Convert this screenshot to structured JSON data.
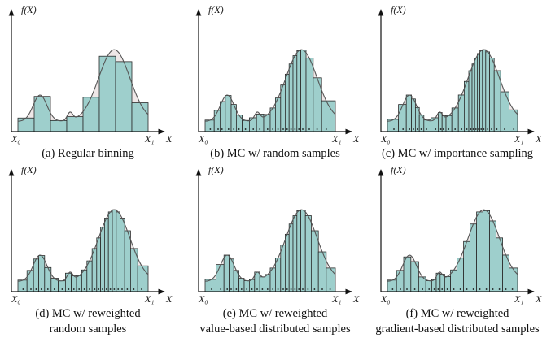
{
  "figure": {
    "curve_color": "#c0a2a2",
    "bar_color": "#9ecfcc",
    "bar_stroke": "#2a2a2a",
    "axis_color": "#111111",
    "panels": [
      {
        "id": "a",
        "y_label": "f(X)",
        "x_label": "X",
        "x_start_label": "X₀",
        "x_end_label": "X₁",
        "caption": [
          "(a) Regular binning"
        ],
        "samples": [
          0.0625,
          0.1875,
          0.3125,
          0.4375,
          0.5625,
          0.6875,
          0.8125,
          0.9375
        ],
        "dots": false,
        "cutoff": 1.0
      },
      {
        "id": "b",
        "y_label": "f(X)",
        "x_label": "X",
        "x_start_label": "X₀",
        "x_end_label": "X₁",
        "caption": [
          "(b) MC w/ random samples"
        ],
        "samples": [
          0.04,
          0.1,
          0.13,
          0.18,
          0.22,
          0.26,
          0.31,
          0.37,
          0.42,
          0.48,
          0.52,
          0.56,
          0.6,
          0.63,
          0.66,
          0.69,
          0.72,
          0.75,
          0.8,
          0.86,
          0.93
        ],
        "dots": true,
        "cutoff": 1.0
      },
      {
        "id": "c",
        "y_label": "f(X)",
        "x_label": "X",
        "x_start_label": "X₀",
        "x_end_label": "X₁",
        "caption": [
          "(c) MC w/ importance sampling"
        ],
        "samples": [
          0.05,
          0.12,
          0.17,
          0.2,
          0.23,
          0.26,
          0.3,
          0.37,
          0.41,
          0.43,
          0.47,
          0.52,
          0.57,
          0.61,
          0.64,
          0.66,
          0.68,
          0.7,
          0.72,
          0.74,
          0.77,
          0.8,
          0.84,
          0.9,
          0.97
        ],
        "dots": true,
        "cutoff": 1.0
      },
      {
        "id": "d",
        "y_label": "f(X)",
        "x_label": "X",
        "x_start_label": "X₀",
        "x_end_label": "X₁",
        "caption": [
          "(d) MC w/ reweighted",
          "random samples"
        ],
        "samples": [
          0.04,
          0.1,
          0.14,
          0.18,
          0.23,
          0.28,
          0.34,
          0.39,
          0.43,
          0.47,
          0.51,
          0.55,
          0.59,
          0.62,
          0.65,
          0.68,
          0.71,
          0.74,
          0.77,
          0.8,
          0.84,
          0.89,
          0.95
        ],
        "dots": true,
        "cutoff": 1.0
      },
      {
        "id": "e",
        "y_label": "f(X)",
        "x_label": "X",
        "x_start_label": "X₀",
        "x_end_label": "X₁",
        "caption": [
          "(e) MC w/ reweighted",
          "value-based distributed samples"
        ],
        "samples": [
          0.05,
          0.12,
          0.17,
          0.2,
          0.24,
          0.28,
          0.32,
          0.36,
          0.4,
          0.44,
          0.48,
          0.52,
          0.56,
          0.6,
          0.63,
          0.66,
          0.69,
          0.72,
          0.75,
          0.79,
          0.84,
          0.9,
          0.96
        ],
        "dots": true,
        "cutoff": 1.0
      },
      {
        "id": "f",
        "y_label": "f(X)",
        "x_label": "X",
        "x_start_label": "X₀",
        "x_end_label": "X₁",
        "caption": [
          "(f) MC w/ reweighted",
          "gradient-based distributed samples"
        ],
        "samples": [
          0.04,
          0.1,
          0.15,
          0.21,
          0.27,
          0.32,
          0.36,
          0.39,
          0.42,
          0.46,
          0.51,
          0.56,
          0.61,
          0.66,
          0.71,
          0.76,
          0.81,
          0.86,
          0.91,
          0.96
        ],
        "dots": true,
        "cutoff": 1.0
      }
    ]
  }
}
